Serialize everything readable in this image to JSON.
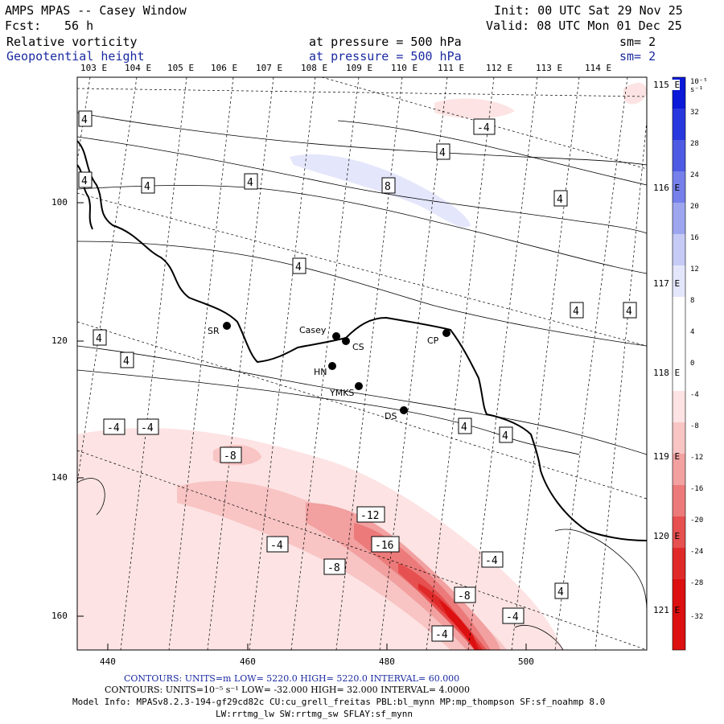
{
  "header": {
    "title": "AMPS MPAS -- Casey Window",
    "fcst_label": "Fcst:",
    "fcst_value": "56 h",
    "init": "Init: 00 UTC Sat 29 Nov 25",
    "valid": "Valid: 08 UTC Mon 01 Dec 25",
    "field1": "Relative vorticity",
    "field1_level": "at pressure =  500 hPa",
    "field1_sm": "sm= 2",
    "field2": "Geopotential height",
    "field2_level": "at pressure =  500 hPa",
    "field2_sm": "sm= 2"
  },
  "axes": {
    "top_lon": [
      "103 E",
      "104 E",
      "105 E",
      "106 E",
      "107 E",
      "108 E",
      "109 E",
      "110 E",
      "111 E",
      "112 E",
      "113 E",
      "114 E"
    ],
    "right_lon": [
      "115 E",
      "116 E",
      "117 E",
      "118 E",
      "119 E",
      "120 E",
      "121 E"
    ],
    "x_ticks": [
      "440",
      "460",
      "480",
      "500"
    ],
    "y_ticks": [
      "100",
      "120",
      "140",
      "160"
    ]
  },
  "stations": [
    {
      "name": "SR"
    },
    {
      "name": "Casey"
    },
    {
      "name": "CS"
    },
    {
      "name": "CP"
    },
    {
      "name": "HN"
    },
    {
      "name": "YMKS"
    },
    {
      "name": "DS"
    }
  ],
  "contour_labels": {
    "positive": [
      "4",
      "4",
      "4",
      "4",
      "8",
      "4",
      "4",
      "4",
      "4",
      "4",
      "4",
      "4",
      "4",
      "4",
      "4"
    ],
    "negative": [
      "-4",
      "-4",
      "-4",
      "-8",
      "-12",
      "-16",
      "-4",
      "-4",
      "-8",
      "-8",
      "-4",
      "-4"
    ]
  },
  "colorbar": {
    "unit": "10⁻⁵ s⁻¹",
    "labels": [
      "32",
      "28",
      "24",
      "20",
      "16",
      "12",
      "8",
      "4",
      "0",
      "-4",
      "-8",
      "-12",
      "-16",
      "-20",
      "-24",
      "-28",
      "-32"
    ]
  },
  "footer": {
    "line1": "CONTOURS:  UNITS=m  LOW=  5220.0         HIGH=  5220.0         INTERVAL=   60.000",
    "line2": "CONTOURS:  UNITS=10⁻⁵ s⁻¹  LOW= -32.000        HIGH=  32.000        INTERVAL=   4.0000",
    "line3": "Model Info: MPASv8.2.3-194-gf29cd82c CU:cu_grell_freitas PBL:bl_mynn MP:mp_thompson SF:sf_noahmp 8.0",
    "line4": "LW:rrtmg_lw SW:rrtmg_sw SFLAY:sf_mynn"
  },
  "colors": {
    "neg1": "#fde3e3",
    "neg2": "#f8c4c4",
    "neg3": "#f2a0a0",
    "neg4": "#ec7a7a",
    "neg5": "#e65050",
    "neg6": "#e02a2a",
    "neg7": "#dc1010",
    "pos1": "#e4e6fb",
    "pos2": "#c6cbf6",
    "pos3": "#9ea6f0",
    "pos4": "#7580ea",
    "pos5": "#4d5be4",
    "pos6": "#2838df",
    "pos7": "#0a1ad8"
  }
}
